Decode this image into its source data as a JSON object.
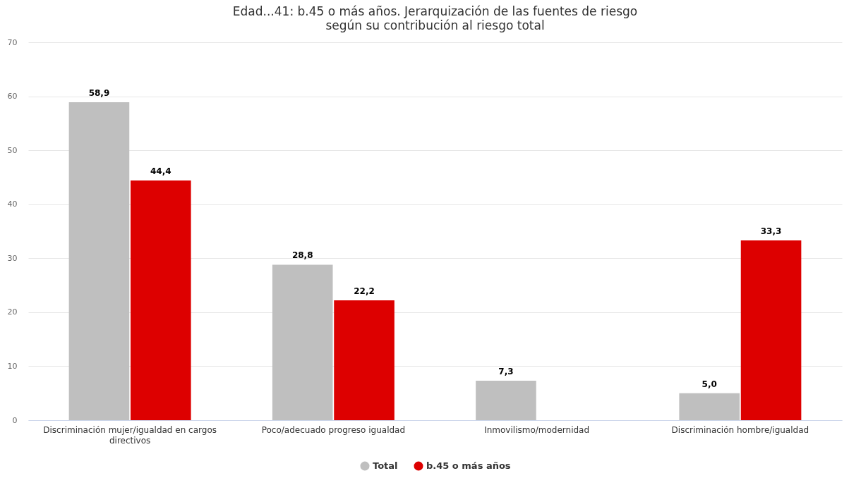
{
  "chart_data": {
    "type": "bar",
    "title": "Edad...41: b.45 o más años. Jerarquización de las fuentes de riesgo según su contribución al riesgo total",
    "categories": [
      "Discriminación mujer/igualdad en cargos directivos",
      "Poco/adecuado progreso igualdad",
      "Inmovilismo/modernidad",
      "Discriminación hombre/igualdad"
    ],
    "series": [
      {
        "name": "Total",
        "color": "#bfbfbf",
        "values": [
          58.9,
          28.8,
          7.3,
          5.0
        ],
        "value_labels": [
          "58,9",
          "28,8",
          "7,3",
          "5,0"
        ]
      },
      {
        "name": "b.45 o más años",
        "color": "#dd0000",
        "values": [
          44.4,
          22.2,
          null,
          33.3
        ],
        "value_labels": [
          "44,4",
          "22,2",
          null,
          "33,3"
        ]
      }
    ],
    "ylim": [
      0,
      70
    ],
    "yticks": [
      0,
      10,
      20,
      30,
      40,
      50,
      60,
      70
    ],
    "grid": "y",
    "legend": "bottom"
  }
}
